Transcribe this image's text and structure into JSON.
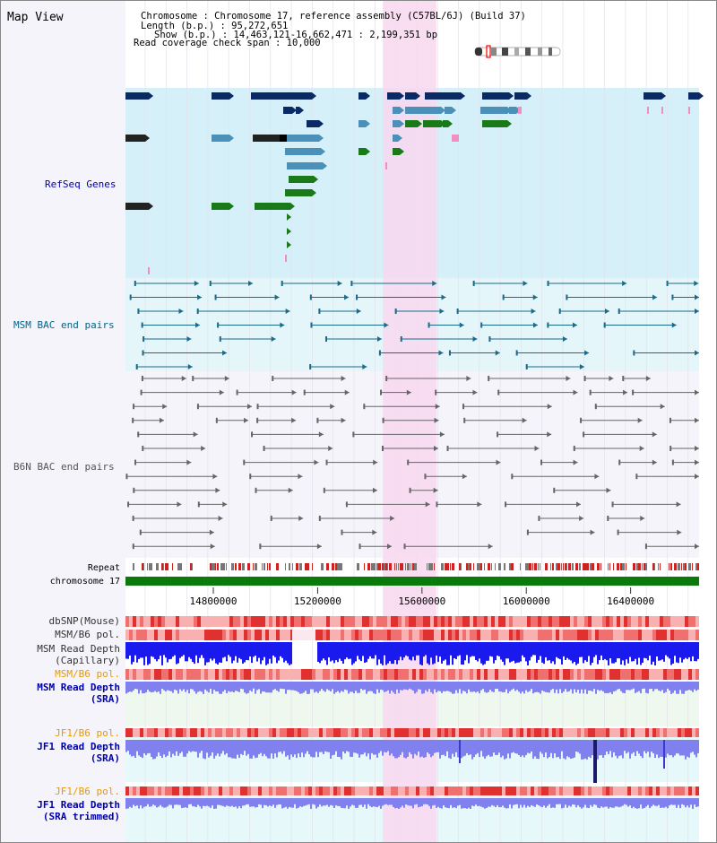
{
  "header": {
    "view_title": "Map View",
    "info_lines": [
      "Chromosome    : Chromosome 17, reference assembly (C57BL/6J) (Build 37)",
      "Length (b.p.) : 95,272,651",
      "Show (b.p.) : 14,463,121-16,662,471 : 2,199,351 bp",
      "Read coverage check span : 10,000"
    ]
  },
  "region": {
    "start_bp": 14463121,
    "end_bp": 16662471,
    "highlight_start_bp": 15450000,
    "highlight_end_bp": 15655000
  },
  "axis": {
    "ticks": [
      14800000,
      15200000,
      15600000,
      16000000,
      16400000
    ],
    "tick_labels": [
      "14800000",
      "15200000",
      "15600000",
      "16000000",
      "16400000"
    ]
  },
  "tracks": {
    "refseq": {
      "label": "RefSeq Genes",
      "color": "#0000aa"
    },
    "msm_bac": {
      "label": "MSM BAC end pairs",
      "color": "#006688"
    },
    "b6n_bac": {
      "label": "B6N BAC end pairs",
      "color": "#555555"
    },
    "repeat": {
      "label": "Repeat"
    },
    "chromosome": {
      "label": "chromosome 17"
    },
    "dbsnp": {
      "label": "dbSNP(Mouse)"
    },
    "msm_b6_pol_1": {
      "label": "MSM/B6 pol."
    },
    "msm_depth_cap": {
      "label_1": "MSM Read Depth",
      "label_2": "(Capillary)"
    },
    "msm_b6_pol_2": {
      "label": "MSM/B6 pol."
    },
    "msm_depth_sra": {
      "label_1": "MSM Read Depth",
      "label_2": "(SRA)"
    },
    "jf1_b6_pol_1": {
      "label": "JF1/B6 pol."
    },
    "jf1_depth_sra": {
      "label_1": "JF1 Read Depth",
      "label_2": "(SRA)"
    },
    "jf1_b6_pol_2": {
      "label": "JF1/B6 pol."
    },
    "jf1_depth_trim": {
      "label_1": "JF1 Read Depth",
      "label_2": "(SRA trimmed)"
    }
  },
  "colors": {
    "highlight": "#f8d8f0",
    "refseq_bg": "#d6f0fa",
    "msm_bg": "#e4f6fa",
    "b6n_bg": "#f4f4fa",
    "gene_dark": "#0a2a66",
    "gene_mid": "#4a90b8",
    "gene_green": "#1a7a1a",
    "chromosome": "#0a7a0a",
    "depth_blue": "#1a1aee",
    "depth_light": "#8080ee",
    "pol_label": "#e89a00",
    "label_blue": "#0000aa"
  }
}
